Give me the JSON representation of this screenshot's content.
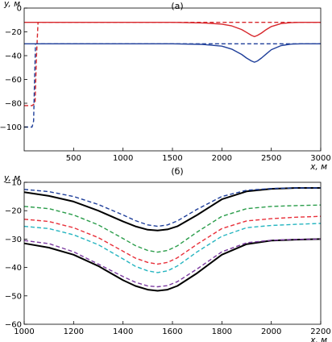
{
  "chart_data": [
    {
      "type": "line",
      "title": "(а)",
      "xlabel": "x, м",
      "ylabel": "y, м",
      "xlim": [
        0,
        3000
      ],
      "ylim": [
        -120,
        0
      ],
      "xticks": [
        "500",
        "1000",
        "1500",
        "2000",
        "2500",
        "3000"
      ],
      "yticks": [
        "0",
        "−20",
        "−40",
        "−60",
        "−80",
        "−100"
      ],
      "grid": false,
      "series": [
        {
          "color": "#d7262b",
          "style": "solid",
          "x": [
            0,
            500,
            1000,
            1500,
            1800,
            2000,
            2100,
            2200,
            2250,
            2300,
            2330,
            2360,
            2400,
            2450,
            2500,
            2600,
            2700,
            2800,
            3000
          ],
          "y": [
            -12,
            -12,
            -12,
            -12,
            -12.5,
            -13.5,
            -15,
            -18,
            -20.5,
            -23,
            -24,
            -23,
            -21,
            -18,
            -15.5,
            -13,
            -12.3,
            -12,
            -12
          ]
        },
        {
          "color": "#d7262b",
          "style": "dashed",
          "x": [
            0,
            80,
            110,
            125,
            140,
            500,
            1000,
            1500,
            2000,
            2500,
            3000
          ],
          "y": [
            -82,
            -82,
            -80,
            -40,
            -12,
            -12,
            -12,
            -12,
            -12,
            -12,
            -12
          ]
        },
        {
          "color": "#1f3f9a",
          "style": "solid",
          "x": [
            0,
            500,
            1000,
            1500,
            1800,
            2000,
            2100,
            2200,
            2250,
            2300,
            2330,
            2360,
            2400,
            2450,
            2500,
            2600,
            2700,
            2800,
            3000
          ],
          "y": [
            -30,
            -30,
            -30,
            -30,
            -30.5,
            -32,
            -34.5,
            -39,
            -42,
            -44.5,
            -45.5,
            -44.5,
            -42,
            -38.5,
            -35,
            -31.5,
            -30.3,
            -30,
            -30
          ]
        },
        {
          "color": "#1f3f9a",
          "style": "dashed",
          "x": [
            0,
            80,
            95,
            105,
            115,
            500,
            1000,
            1500,
            2000,
            2500,
            3000
          ],
          "y": [
            -100,
            -100,
            -95,
            -60,
            -30,
            -30,
            -30,
            -30,
            -30,
            -30,
            -30
          ]
        }
      ]
    },
    {
      "type": "line",
      "title": "(б)",
      "xlabel": "x, м",
      "ylabel": "y, м",
      "xlim": [
        1000,
        2200
      ],
      "ylim": [
        -60,
        -10
      ],
      "xticks": [
        "1000",
        "1200",
        "1400",
        "1600",
        "1800",
        "2000",
        "2200"
      ],
      "yticks": [
        "−10",
        "−20",
        "−30",
        "−40",
        "−50",
        "−60"
      ],
      "grid": false,
      "series": [
        {
          "color": "#000000",
          "style": "solid",
          "width": 2,
          "x": [
            1000,
            1100,
            1200,
            1300,
            1400,
            1450,
            1500,
            1540,
            1580,
            1620,
            1700,
            1800,
            1900,
            2000,
            2100,
            2200
          ],
          "y": [
            -13.5,
            -14.8,
            -16.8,
            -20,
            -23.8,
            -25.5,
            -26.7,
            -27,
            -26.6,
            -25.5,
            -21.5,
            -16,
            -13.2,
            -12.3,
            -12,
            -12
          ]
        },
        {
          "color": "#000000",
          "style": "solid",
          "width": 2,
          "x": [
            1000,
            1100,
            1200,
            1300,
            1400,
            1450,
            1500,
            1540,
            1580,
            1620,
            1700,
            1800,
            1900,
            2000,
            2100,
            2200
          ],
          "y": [
            -31.5,
            -33,
            -35.5,
            -39.5,
            -44.5,
            -46.5,
            -47.8,
            -48.2,
            -47.8,
            -46.5,
            -42,
            -35.5,
            -31.8,
            -30.5,
            -30.2,
            -30
          ]
        },
        {
          "color": "#1f3f9a",
          "style": "dashed",
          "x": [
            1000,
            1100,
            1200,
            1300,
            1400,
            1450,
            1500,
            1540,
            1580,
            1620,
            1700,
            1800,
            1900,
            2000,
            2100,
            2200
          ],
          "y": [
            -12.5,
            -13.3,
            -15,
            -17.8,
            -21.5,
            -23.5,
            -25,
            -25.5,
            -25,
            -23.6,
            -19.5,
            -15,
            -12.8,
            -12.2,
            -12,
            -12
          ]
        },
        {
          "color": "#2a9d4a",
          "style": "dashed",
          "x": [
            1000,
            1100,
            1200,
            1300,
            1400,
            1450,
            1500,
            1540,
            1580,
            1620,
            1700,
            1800,
            1900,
            2000,
            2100,
            2200
          ],
          "y": [
            -18.5,
            -19.3,
            -21.5,
            -25,
            -29.8,
            -32.3,
            -34,
            -34.6,
            -34,
            -32.4,
            -27.5,
            -22,
            -19.3,
            -18.5,
            -18.2,
            -18
          ]
        },
        {
          "color": "#e8303a",
          "style": "dashed",
          "x": [
            1000,
            1100,
            1200,
            1300,
            1400,
            1450,
            1500,
            1540,
            1580,
            1620,
            1700,
            1800,
            1900,
            2000,
            2100,
            2200
          ],
          "y": [
            -23,
            -23.8,
            -26,
            -29.5,
            -34.3,
            -36.7,
            -38.2,
            -38.8,
            -38.2,
            -36.6,
            -31.8,
            -26.3,
            -23.6,
            -22.8,
            -22.3,
            -22
          ]
        },
        {
          "color": "#25b5c0",
          "style": "dashed",
          "x": [
            1000,
            1100,
            1200,
            1300,
            1400,
            1450,
            1500,
            1540,
            1580,
            1620,
            1700,
            1800,
            1900,
            2000,
            2100,
            2200
          ],
          "y": [
            -25.5,
            -26.3,
            -28.5,
            -32,
            -37,
            -39.6,
            -41.2,
            -41.8,
            -41.2,
            -39.5,
            -34.5,
            -29,
            -26,
            -25.2,
            -24.8,
            -24.5
          ]
        },
        {
          "color": "#7b3aa0",
          "style": "dashed",
          "x": [
            1000,
            1100,
            1200,
            1300,
            1400,
            1450,
            1500,
            1540,
            1580,
            1620,
            1700,
            1800,
            1900,
            2000,
            2100,
            2200
          ],
          "y": [
            -30.5,
            -31.6,
            -34.5,
            -38.8,
            -43.2,
            -45.2,
            -46.5,
            -46.8,
            -46.4,
            -45,
            -40.5,
            -34.5,
            -31.3,
            -30.4,
            -30.1,
            -30
          ]
        }
      ]
    }
  ]
}
